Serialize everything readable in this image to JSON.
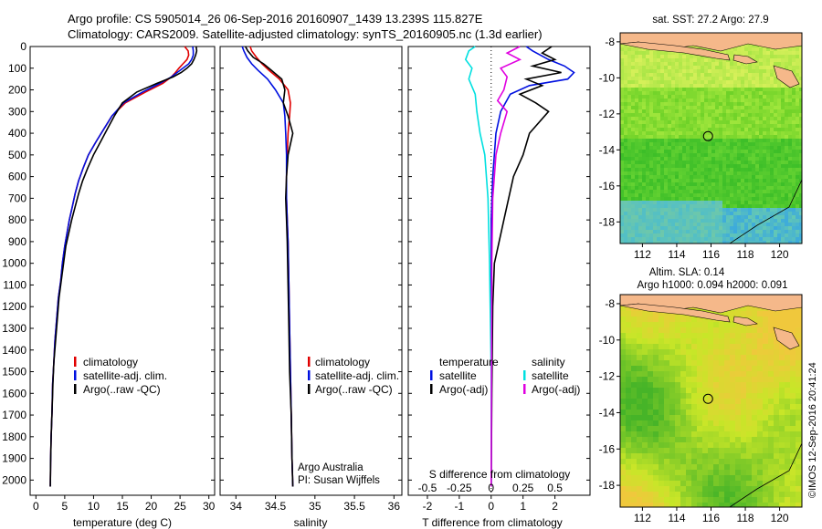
{
  "header": {
    "line1": "Argo profile: CS 5905014_26 06-Sep-2016 20160907_1439 13.239S 115.827E",
    "line2": "Climatology: CARS2009. Satellite-adjusted climatology: synTS_20160905.nc (1.3d earlier)"
  },
  "colors": {
    "climatology": "#e00000",
    "satellite": "#0010e0",
    "argo": "#000000",
    "sal_satellite": "#00e0e0",
    "sal_argo": "#e000e0",
    "land": "#f5b88a",
    "circle": "#000000"
  },
  "chart_data": [
    {
      "type": "line",
      "id": "temperature",
      "xlabel": "temperature (deg C)",
      "xlim": [
        -1,
        31
      ],
      "xticks": [
        "0",
        "5",
        "10",
        "15",
        "20",
        "25",
        "30"
      ],
      "xtick_values": [
        0,
        5,
        10,
        15,
        20,
        25,
        30
      ],
      "ylim": [
        0,
        2070
      ],
      "yticks": [
        "0",
        "100",
        "200",
        "300",
        "400",
        "500",
        "600",
        "700",
        "800",
        "900",
        "1000",
        "1100",
        "1200",
        "1300",
        "1400",
        "1500",
        "1600",
        "1700",
        "1800",
        "1900",
        "2000"
      ],
      "legend": [
        "climatology",
        "satellite-adj. clim.",
        "Argo(..raw -QC)"
      ],
      "series": [
        {
          "name": "climatology",
          "color": "#e00000",
          "x": [
            25.8,
            26.4,
            26.5,
            26.2,
            25.5,
            24.8,
            24.2,
            23.5,
            22,
            19,
            15.5,
            13.2,
            11.8,
            10.4,
            9.1,
            8.2,
            7.4,
            6.8,
            6.3,
            5.8,
            5.4,
            5,
            4.6,
            4.3,
            3.9,
            3.6,
            3.3,
            3.1,
            2.9,
            2.8,
            2.65,
            2.55,
            2.5
          ],
          "y": [
            0,
            20,
            40,
            60,
            80,
            100,
            120,
            140,
            170,
            210,
            260,
            320,
            380,
            440,
            500,
            560,
            620,
            680,
            740,
            800,
            860,
            920,
            1000,
            1080,
            1160,
            1260,
            1360,
            1460,
            1560,
            1680,
            1800,
            1920,
            2030
          ]
        },
        {
          "name": "satellite-adj. clim.",
          "color": "#0010e0",
          "x": [
            27.2,
            27.3,
            27.3,
            27.0,
            26.5,
            25.5,
            24.5,
            23.5,
            21.5,
            18.5,
            15.2,
            13.2,
            11.8,
            10.4,
            9.1,
            8.2,
            7.4,
            6.8,
            6.3,
            5.8,
            5.4,
            5,
            4.6,
            4.3,
            3.9,
            3.6,
            3.3,
            3.1,
            2.9,
            2.8,
            2.65,
            2.55,
            2.5
          ],
          "y": [
            0,
            20,
            40,
            60,
            80,
            100,
            120,
            140,
            170,
            210,
            260,
            320,
            380,
            440,
            500,
            560,
            620,
            680,
            740,
            800,
            860,
            920,
            1000,
            1080,
            1160,
            1260,
            1360,
            1460,
            1560,
            1680,
            1800,
            1920,
            2030
          ]
        },
        {
          "name": "Argo(..raw -QC)",
          "color": "#000000",
          "x": [
            27.8,
            27.9,
            27.7,
            27.4,
            27.0,
            26.2,
            25.2,
            23.8,
            21.0,
            17.5,
            15.0,
            13.6,
            12.4,
            11.2,
            10.0,
            9.0,
            8.1,
            7.4,
            6.8,
            6.2,
            5.7,
            5.2,
            4.8,
            4.4,
            4.0,
            3.7,
            3.4,
            3.1,
            2.95,
            2.8,
            2.65,
            2.55,
            2.5
          ],
          "y": [
            0,
            20,
            40,
            60,
            80,
            100,
            120,
            140,
            170,
            210,
            260,
            320,
            380,
            440,
            500,
            560,
            620,
            680,
            740,
            800,
            860,
            920,
            1000,
            1080,
            1160,
            1260,
            1360,
            1460,
            1560,
            1680,
            1800,
            1920,
            2030
          ]
        }
      ]
    },
    {
      "type": "line",
      "id": "salinity",
      "xlabel": "salinity",
      "xlim": [
        33.8,
        36.1
      ],
      "xticks": [
        "34",
        "34.5",
        "35",
        "35.5",
        "36"
      ],
      "xtick_values": [
        34,
        34.5,
        35,
        35.5,
        36
      ],
      "ylim": [
        0,
        2070
      ],
      "legend": [
        "climatology",
        "satellite-adj. clim.",
        "Argo(..raw -QC)"
      ],
      "annotation": [
        "Argo Australia",
        "PI: Susan Wijffels"
      ],
      "series": [
        {
          "name": "climatology",
          "color": "#e00000",
          "x": [
            34.18,
            34.2,
            34.26,
            34.33,
            34.42,
            34.55,
            34.66,
            34.69,
            34.68,
            34.66,
            34.65,
            34.64,
            34.64,
            34.65,
            34.66,
            34.67,
            34.68,
            34.69,
            34.7,
            34.71,
            34.72
          ],
          "y": [
            0,
            20,
            50,
            80,
            110,
            150,
            200,
            260,
            320,
            400,
            500,
            600,
            700,
            800,
            900,
            1100,
            1300,
            1500,
            1700,
            1900,
            2030
          ]
        },
        {
          "name": "satellite-adj. clim.",
          "color": "#0010e0",
          "x": [
            34.08,
            34.1,
            34.14,
            34.2,
            34.28,
            34.4,
            34.5,
            34.6,
            34.62,
            34.63,
            34.64,
            34.64,
            34.64,
            34.65,
            34.66,
            34.67,
            34.68,
            34.69,
            34.7,
            34.71,
            34.72
          ],
          "y": [
            0,
            20,
            50,
            80,
            110,
            150,
            200,
            260,
            320,
            400,
            500,
            600,
            700,
            800,
            900,
            1100,
            1300,
            1500,
            1700,
            1900,
            2030
          ]
        },
        {
          "name": "Argo(..raw -QC)",
          "color": "#000000",
          "x": [
            34.12,
            34.15,
            34.22,
            34.35,
            34.45,
            34.58,
            34.62,
            34.6,
            34.66,
            34.72,
            34.66,
            34.64,
            34.63,
            34.64,
            34.65,
            34.66,
            34.67,
            34.68,
            34.7,
            34.71,
            34.72
          ],
          "y": [
            0,
            20,
            50,
            80,
            110,
            150,
            200,
            260,
            320,
            400,
            500,
            600,
            700,
            800,
            900,
            1100,
            1300,
            1500,
            1700,
            1900,
            2030
          ]
        }
      ]
    },
    {
      "type": "line",
      "id": "difference",
      "xlabel": "T difference from climatology",
      "top_xlabel": "S difference from climatology",
      "xlim": [
        -2.6,
        3.1
      ],
      "xticks": [
        "-2",
        "-1",
        "0",
        "1",
        "2"
      ],
      "xtick_values": [
        -2,
        -1,
        0,
        1,
        2
      ],
      "sticks": [
        "-0.5",
        "-0.25",
        "0",
        "0.25",
        "0.5"
      ],
      "stick_values": [
        -2,
        -1,
        0,
        1,
        2
      ],
      "ylim": [
        0,
        2070
      ],
      "legend_temperature": [
        "temperature",
        "satellite",
        "Argo(-adj)"
      ],
      "legend_salinity": [
        "salinity",
        "satellite",
        "Argo(-adj)"
      ],
      "series": [
        {
          "name": "satellite",
          "color": "#0010e0",
          "x": [
            1.1,
            1.3,
            1.8,
            2.3,
            2.6,
            2.4,
            1.2,
            0.6,
            0.3,
            0.15,
            0.05,
            0,
            0,
            0,
            0,
            0
          ],
          "y": [
            0,
            20,
            60,
            90,
            120,
            150,
            180,
            220,
            300,
            400,
            600,
            800,
            1000,
            1400,
            1800,
            2030
          ]
        },
        {
          "name": "Argo(-adj)",
          "color": "#000000",
          "x": [
            1.9,
            1.6,
            2.0,
            1.3,
            2.2,
            1.1,
            1.6,
            0.9,
            1.4,
            1.8,
            1.2,
            1.0,
            0.7,
            0.4,
            0.1,
            0.05,
            0.02,
            0
          ],
          "y": [
            0,
            30,
            60,
            90,
            120,
            150,
            180,
            220,
            260,
            300,
            400,
            500,
            600,
            800,
            1000,
            1200,
            1600,
            2030
          ]
        },
        {
          "name": "satellite (S)",
          "color": "#00e0e0",
          "x": [
            -0.5,
            -0.7,
            -0.8,
            -0.6,
            -0.7,
            -0.5,
            -0.45,
            -0.35,
            -0.2,
            -0.1,
            -0.05,
            0,
            0
          ],
          "y": [
            0,
            20,
            60,
            100,
            150,
            220,
            300,
            400,
            500,
            700,
            1000,
            1500,
            2030
          ]
        },
        {
          "name": "Argo(-adj) (S)",
          "color": "#e000e0",
          "x": [
            0.9,
            0.5,
            0.9,
            0.3,
            0.5,
            0.4,
            0.2,
            0.5,
            0.3,
            0.15,
            0.05,
            0.02,
            0
          ],
          "y": [
            0,
            30,
            60,
            100,
            140,
            200,
            250,
            300,
            400,
            500,
            700,
            1000,
            2030
          ]
        }
      ]
    },
    {
      "type": "heatmap",
      "id": "sst_map",
      "title": "sat. SST: 27.2 Argo: 27.9",
      "xticks": [
        "112",
        "114",
        "116",
        "118",
        "120"
      ],
      "xtick_values": [
        112,
        114,
        116,
        118,
        120
      ],
      "yticks": [
        "-8",
        "-10",
        "-12",
        "-14",
        "-16",
        "-18"
      ],
      "ytick_values": [
        -8,
        -10,
        -12,
        -14,
        -16,
        -18
      ],
      "xlim": [
        110.7,
        121.3
      ],
      "ylim": [
        -19.2,
        -7.5
      ],
      "marker": {
        "lon": 115.827,
        "lat": -13.239
      }
    },
    {
      "type": "heatmap",
      "id": "sla_map",
      "title": [
        "Altim. SLA: 0.14",
        "Argo h1000: 0.094 h2000: 0.091"
      ],
      "xticks": [
        "112",
        "114",
        "116",
        "118",
        "120"
      ],
      "xtick_values": [
        112,
        114,
        116,
        118,
        120
      ],
      "yticks": [
        "-8",
        "-10",
        "-12",
        "-14",
        "-16",
        "-18"
      ],
      "ytick_values": [
        -8,
        -10,
        -12,
        -14,
        -16,
        -18
      ],
      "xlim": [
        110.7,
        121.3
      ],
      "ylim": [
        -19.2,
        -7.5
      ],
      "marker": {
        "lon": 115.827,
        "lat": -13.239
      }
    }
  ],
  "footer": "©IMOS 12-Sep-2016 20:41:24"
}
